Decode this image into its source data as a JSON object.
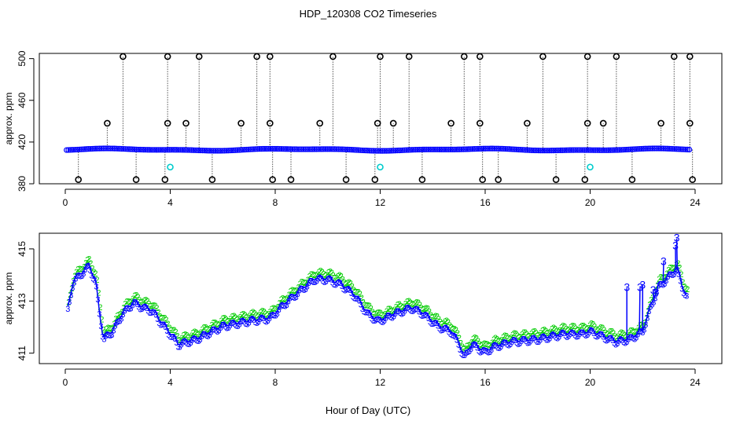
{
  "title": "HDP_120308  CO2 Timeseries",
  "xlabel": "Hour of Day (UTC)",
  "colors": {
    "primary": "#0000ff",
    "secondary": "#00cc00",
    "marker": "#000000",
    "cyan": "#00cccc"
  },
  "chart_data": [
    {
      "type": "scatter",
      "ylabel": "approx. ppm",
      "xlim": [
        0,
        24
      ],
      "ylim": [
        380,
        505
      ],
      "xticks": [
        0,
        4,
        8,
        12,
        16,
        20,
        24
      ],
      "yticks": [
        380,
        420,
        460,
        500
      ],
      "baseline_level": 412.7,
      "series": [
        {
          "marker": "black-circle",
          "x": [
            2.2,
            3.9,
            5.1,
            7.3,
            7.8,
            10.2,
            12.0,
            13.1,
            15.2,
            15.8,
            18.2,
            19.9,
            21.0,
            23.2,
            23.8
          ],
          "y": [
            502,
            502,
            502,
            502,
            502,
            502,
            502,
            502,
            502,
            502,
            502,
            502,
            502,
            502,
            502
          ]
        },
        {
          "marker": "black-circle",
          "x": [
            1.6,
            3.9,
            4.6,
            6.7,
            7.8,
            9.7,
            11.9,
            12.5,
            14.7,
            15.8,
            17.6,
            19.9,
            20.5,
            22.7,
            23.8
          ],
          "y": [
            438,
            438,
            438,
            438,
            438,
            438,
            438,
            438,
            438,
            438,
            438,
            438,
            438,
            438,
            438
          ]
        },
        {
          "marker": "black-circle",
          "x": [
            0.5,
            2.7,
            3.8,
            5.6,
            7.9,
            8.6,
            10.7,
            11.8,
            13.6,
            15.9,
            16.5,
            18.7,
            19.8,
            21.6,
            23.9
          ],
          "y": [
            384,
            384,
            384,
            384,
            384,
            384,
            384,
            384,
            384,
            384,
            384,
            384,
            384,
            384,
            384
          ]
        },
        {
          "marker": "cyan-circle",
          "x": [
            4.0,
            12.0,
            20.0
          ],
          "y": [
            396,
            396,
            396
          ]
        }
      ]
    },
    {
      "type": "line",
      "ylabel": "approx. ppm",
      "xlim": [
        0,
        24
      ],
      "ylim": [
        410.6,
        415.6
      ],
      "xticks": [
        0,
        4,
        8,
        12,
        16,
        20,
        24
      ],
      "yticks": [
        411,
        413,
        415
      ],
      "keyframes": {
        "x": [
          0.1,
          0.3,
          0.6,
          0.9,
          1.15,
          1.3,
          1.45,
          1.8,
          2.2,
          2.6,
          3.0,
          3.3,
          3.6,
          4.0,
          4.3,
          5.0,
          6.0,
          7.0,
          7.8,
          8.3,
          9.0,
          9.5,
          10.0,
          10.5,
          11.0,
          11.5,
          11.9,
          12.2,
          12.6,
          13.2,
          13.6,
          14.2,
          14.7,
          15.0,
          15.2,
          15.5,
          16.0,
          16.3,
          17.0,
          18.0,
          19.0,
          19.7,
          20.0,
          20.5,
          21.0,
          21.5,
          22.0,
          22.3,
          22.6,
          23.0,
          23.3,
          23.5,
          23.7
        ],
        "y": [
          412.7,
          413.8,
          414.1,
          414.4,
          413.8,
          412.6,
          411.6,
          411.9,
          412.6,
          413.0,
          412.8,
          412.7,
          412.3,
          411.8,
          411.4,
          411.6,
          412.1,
          412.3,
          412.4,
          412.9,
          413.5,
          413.9,
          413.9,
          413.7,
          413.3,
          412.6,
          412.3,
          412.4,
          412.6,
          412.8,
          412.6,
          412.1,
          411.9,
          411.4,
          410.9,
          411.4,
          411.1,
          411.3,
          411.5,
          411.6,
          411.8,
          411.8,
          411.9,
          411.7,
          411.5,
          411.6,
          411.9,
          412.8,
          413.6,
          414.0,
          414.3,
          413.6,
          413.2
        ]
      },
      "spikes": {
        "x": [
          21.4,
          21.9,
          22.0,
          22.4,
          22.5,
          22.8,
          23.25,
          23.3
        ],
        "y": [
          413.5,
          413.5,
          413.6,
          413.4,
          413.3,
          414.5,
          415.1,
          415.4
        ]
      },
      "series": [
        {
          "name": "",
          "label_char": "3"
        },
        {
          "name": "",
          "label_char": "2"
        }
      ]
    }
  ]
}
